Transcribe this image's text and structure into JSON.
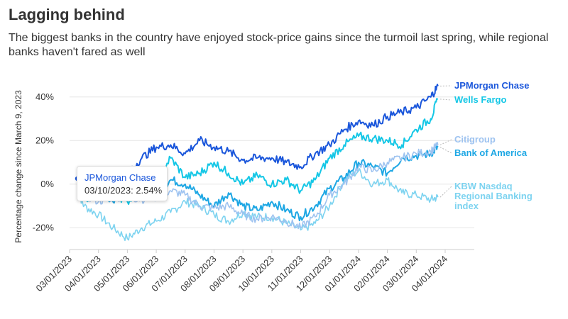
{
  "header": {
    "title": "Lagging behind",
    "subtitle": "The biggest banks in the country have enjoyed stock-price gains since the turmoil last spring, while regional banks haven't fared as well"
  },
  "tooltip": {
    "series": "JPMorgan Chase",
    "date": "03/10/2023",
    "value": "2.54%"
  },
  "chart_data": {
    "type": "line",
    "title": "Lagging behind",
    "xlabel": "",
    "ylabel": "Percentage change since March 9, 2023",
    "ylim": [
      -30,
      50
    ],
    "yticks": [
      -20,
      0,
      20,
      40
    ],
    "ytick_labels": [
      "-20%",
      "0%",
      "20%",
      "40%"
    ],
    "xticks": [
      "03/01/2023",
      "04/01/2023",
      "05/01/2023",
      "06/01/2023",
      "07/01/2023",
      "08/01/2023",
      "09/01/2023",
      "10/01/2023",
      "11/01/2023",
      "12/01/2023",
      "01/01/2024",
      "02/01/2024",
      "03/01/2024",
      "04/01/2024"
    ],
    "x_range_months": [
      0,
      13
    ],
    "x_month": [
      0.27,
      0.5,
      1.0,
      1.5,
      2.0,
      2.5,
      3.0,
      3.5,
      4.0,
      4.5,
      5.0,
      5.5,
      6.0,
      6.5,
      7.0,
      7.5,
      8.0,
      8.5,
      9.0,
      9.5,
      10.0,
      10.5,
      11.0,
      11.5,
      12.0,
      12.5,
      12.75
    ],
    "series": [
      {
        "name": "Regional Banking",
        "label_lines": [
          "KBW Nasdaq",
          "Regional Banking",
          "index"
        ],
        "color": "#7dd3f0",
        "width": 1.6,
        "values": [
          -3,
          -10,
          -14,
          -20,
          -25,
          -20,
          -17,
          -13,
          -8,
          -10,
          -14,
          -17,
          -13,
          -15,
          -15,
          -18,
          -21,
          -18,
          -10,
          2,
          6,
          0,
          2,
          -4,
          -5,
          -7,
          -6
        ]
      },
      {
        "name": "Bank of America",
        "color": "#1ea7e4",
        "width": 2,
        "values": [
          0,
          -6,
          -4,
          -8,
          -2,
          -3,
          -4,
          2,
          0,
          -5,
          -10,
          -4,
          -10,
          -12,
          -8,
          -12,
          -15,
          -10,
          -2,
          3,
          10,
          8,
          5,
          12,
          13,
          14,
          17
        ]
      },
      {
        "name": "Citigroup",
        "color": "#9ec3f0",
        "width": 1.6,
        "values": [
          0,
          -5,
          -8,
          -6,
          -6,
          -7,
          -6,
          -3,
          -5,
          -10,
          -11,
          -10,
          -14,
          -16,
          -15,
          -17,
          -20,
          -15,
          -5,
          0,
          8,
          6,
          10,
          12,
          14,
          15,
          18
        ]
      },
      {
        "name": "Wells Fargo",
        "color": "#15c7e6",
        "width": 2,
        "values": [
          0,
          -6,
          -6,
          -4,
          -8,
          -2,
          2,
          12,
          3,
          5,
          10,
          5,
          0,
          4,
          0,
          2,
          -3,
          2,
          12,
          18,
          22,
          21,
          20,
          18,
          25,
          30,
          39
        ]
      },
      {
        "name": "JPMorgan Chase",
        "color": "#1a56db",
        "width": 2,
        "values": [
          2.54,
          -4,
          -2,
          2,
          5,
          12,
          17,
          18,
          14,
          20,
          17,
          15,
          11,
          12,
          12,
          10,
          8,
          14,
          18,
          25,
          29,
          27,
          31,
          33,
          35,
          40,
          45
        ]
      }
    ]
  }
}
